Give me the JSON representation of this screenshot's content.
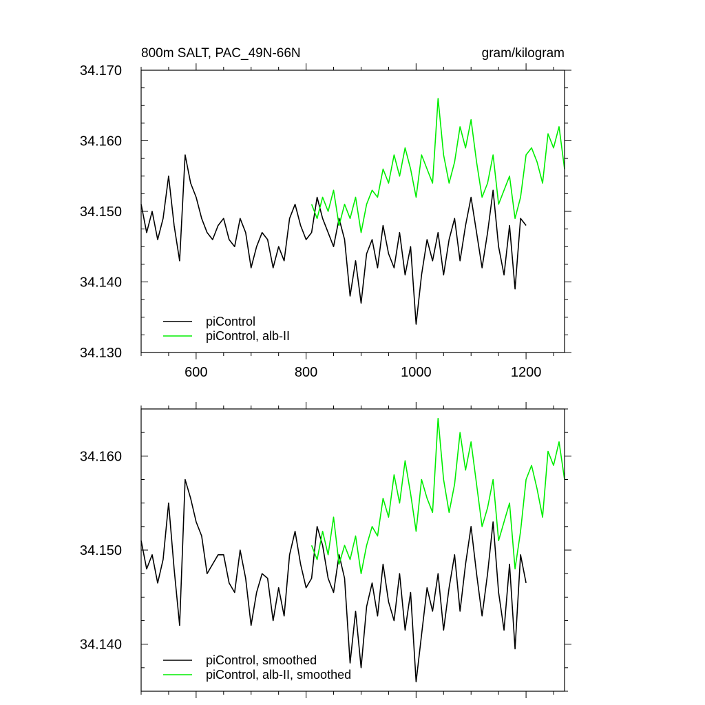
{
  "chart_data": [
    {
      "type": "line",
      "title": "800m SALT, PAC_49N-66N",
      "units": "gram/kilogram",
      "xlim": [
        500,
        1270
      ],
      "ylim": [
        34.13,
        34.17
      ],
      "x_ticks": [
        600,
        800,
        1000,
        1200
      ],
      "x_tick_labels": [
        "600",
        "800",
        "1000",
        "1200"
      ],
      "y_ticks": [
        34.13,
        34.14,
        34.15,
        34.16,
        34.17
      ],
      "y_tick_labels": [
        "34.130",
        "34.140",
        "34.150",
        "34.160",
        "34.170"
      ],
      "legend_position": "bottom-left",
      "series": [
        {
          "name": "piControl",
          "color": "#000000",
          "x": [
            500,
            510,
            520,
            530,
            540,
            550,
            560,
            570,
            580,
            590,
            600,
            610,
            620,
            630,
            640,
            650,
            660,
            670,
            680,
            690,
            700,
            710,
            720,
            730,
            740,
            750,
            760,
            770,
            780,
            790,
            800,
            810,
            820,
            830,
            840,
            850,
            860,
            870,
            880,
            890,
            900,
            910,
            920,
            930,
            940,
            950,
            960,
            970,
            980,
            990,
            1000,
            1010,
            1020,
            1030,
            1040,
            1050,
            1060,
            1070,
            1080,
            1090,
            1100,
            1110,
            1120,
            1130,
            1140,
            1150,
            1160,
            1170,
            1180,
            1190,
            1200
          ],
          "values": [
            34.151,
            34.147,
            34.15,
            34.146,
            34.149,
            34.155,
            34.148,
            34.143,
            34.158,
            34.154,
            34.152,
            34.149,
            34.147,
            34.146,
            34.148,
            34.149,
            34.146,
            34.145,
            34.149,
            34.147,
            34.142,
            34.145,
            34.147,
            34.146,
            34.142,
            34.145,
            34.143,
            34.149,
            34.151,
            34.148,
            34.146,
            34.147,
            34.152,
            34.149,
            34.147,
            34.145,
            34.149,
            34.146,
            34.138,
            34.143,
            34.137,
            34.144,
            34.146,
            34.142,
            34.148,
            34.144,
            34.142,
            34.147,
            34.141,
            34.145,
            34.134,
            34.141,
            34.146,
            34.143,
            34.147,
            34.141,
            34.146,
            34.149,
            34.143,
            34.148,
            34.152,
            34.147,
            34.142,
            34.147,
            34.153,
            34.145,
            34.141,
            34.148,
            34.139,
            34.149,
            34.148
          ]
        },
        {
          "name": "piControl, alb-II",
          "color": "#00ee00",
          "x": [
            810,
            820,
            830,
            840,
            850,
            860,
            870,
            880,
            890,
            900,
            910,
            920,
            930,
            940,
            950,
            960,
            970,
            980,
            990,
            1000,
            1010,
            1020,
            1030,
            1040,
            1050,
            1060,
            1070,
            1080,
            1090,
            1100,
            1110,
            1120,
            1130,
            1140,
            1150,
            1160,
            1170,
            1180,
            1190,
            1200,
            1210,
            1220,
            1230,
            1240,
            1250,
            1260,
            1270
          ],
          "values": [
            34.151,
            34.149,
            34.152,
            34.15,
            34.153,
            34.148,
            34.151,
            34.149,
            34.152,
            34.147,
            34.151,
            34.153,
            34.152,
            34.156,
            34.154,
            34.158,
            34.155,
            34.159,
            34.156,
            34.152,
            34.158,
            34.156,
            34.154,
            34.166,
            34.158,
            34.154,
            34.157,
            34.162,
            34.159,
            34.163,
            34.157,
            34.152,
            34.154,
            34.158,
            34.151,
            34.153,
            34.155,
            34.149,
            34.152,
            34.158,
            34.159,
            34.157,
            34.154,
            34.161,
            34.159,
            34.162,
            34.156
          ]
        }
      ]
    },
    {
      "type": "line",
      "xlim": [
        500,
        1270
      ],
      "ylim": [
        34.135,
        34.165
      ],
      "x_ticks": [
        600,
        800,
        1000,
        1200
      ],
      "y_ticks": [
        34.14,
        34.15,
        34.16
      ],
      "y_tick_labels": [
        "34.140",
        "34.150",
        "34.160"
      ],
      "legend_position": "bottom-left",
      "series": [
        {
          "name": "piControl, smoothed",
          "color": "#000000",
          "x": [
            500,
            510,
            520,
            530,
            540,
            550,
            560,
            570,
            580,
            590,
            600,
            610,
            620,
            630,
            640,
            650,
            660,
            670,
            680,
            690,
            700,
            710,
            720,
            730,
            740,
            750,
            760,
            770,
            780,
            790,
            800,
            810,
            820,
            830,
            840,
            850,
            860,
            870,
            880,
            890,
            900,
            910,
            920,
            930,
            940,
            950,
            960,
            970,
            980,
            990,
            1000,
            1010,
            1020,
            1030,
            1040,
            1050,
            1060,
            1070,
            1080,
            1090,
            1100,
            1110,
            1120,
            1130,
            1140,
            1150,
            1160,
            1170,
            1180,
            1190,
            1200
          ],
          "values": [
            34.151,
            34.148,
            34.1495,
            34.1465,
            34.149,
            34.155,
            34.148,
            34.142,
            34.1575,
            34.1555,
            34.153,
            34.1515,
            34.1475,
            34.1485,
            34.1495,
            34.1495,
            34.1465,
            34.1455,
            34.15,
            34.147,
            34.142,
            34.1455,
            34.1475,
            34.147,
            34.1425,
            34.146,
            34.143,
            34.1495,
            34.152,
            34.1485,
            34.146,
            34.147,
            34.1525,
            34.1505,
            34.147,
            34.1455,
            34.1495,
            34.147,
            34.138,
            34.1435,
            34.1375,
            34.144,
            34.1465,
            34.143,
            34.1485,
            34.1445,
            34.1425,
            34.1475,
            34.1415,
            34.1455,
            34.136,
            34.141,
            34.146,
            34.1435,
            34.1475,
            34.1415,
            34.146,
            34.1495,
            34.1435,
            34.1485,
            34.1525,
            34.1475,
            34.143,
            34.1475,
            34.153,
            34.1455,
            34.1415,
            34.1485,
            34.1395,
            34.1495,
            34.1465
          ]
        },
        {
          "name": "piControl, alb-II, smoothed",
          "color": "#00ee00",
          "x": [
            810,
            820,
            830,
            840,
            850,
            860,
            870,
            880,
            890,
            900,
            910,
            920,
            930,
            940,
            950,
            960,
            970,
            980,
            990,
            1000,
            1010,
            1020,
            1030,
            1040,
            1050,
            1060,
            1070,
            1080,
            1090,
            1100,
            1110,
            1120,
            1130,
            1140,
            1150,
            1160,
            1170,
            1180,
            1190,
            1200,
            1210,
            1220,
            1230,
            1240,
            1250,
            1260,
            1270
          ],
          "values": [
            34.1505,
            34.149,
            34.152,
            34.1495,
            34.1535,
            34.1485,
            34.1505,
            34.149,
            34.1515,
            34.1475,
            34.1505,
            34.1525,
            34.1515,
            34.1555,
            34.1535,
            34.158,
            34.155,
            34.1595,
            34.156,
            34.152,
            34.1575,
            34.1555,
            34.154,
            34.164,
            34.1575,
            34.154,
            34.157,
            34.1625,
            34.1585,
            34.1615,
            34.157,
            34.1525,
            34.1545,
            34.1575,
            34.151,
            34.153,
            34.155,
            34.148,
            34.152,
            34.1575,
            34.159,
            34.1565,
            34.1535,
            34.1605,
            34.159,
            34.1615,
            34.1575
          ]
        }
      ]
    }
  ]
}
